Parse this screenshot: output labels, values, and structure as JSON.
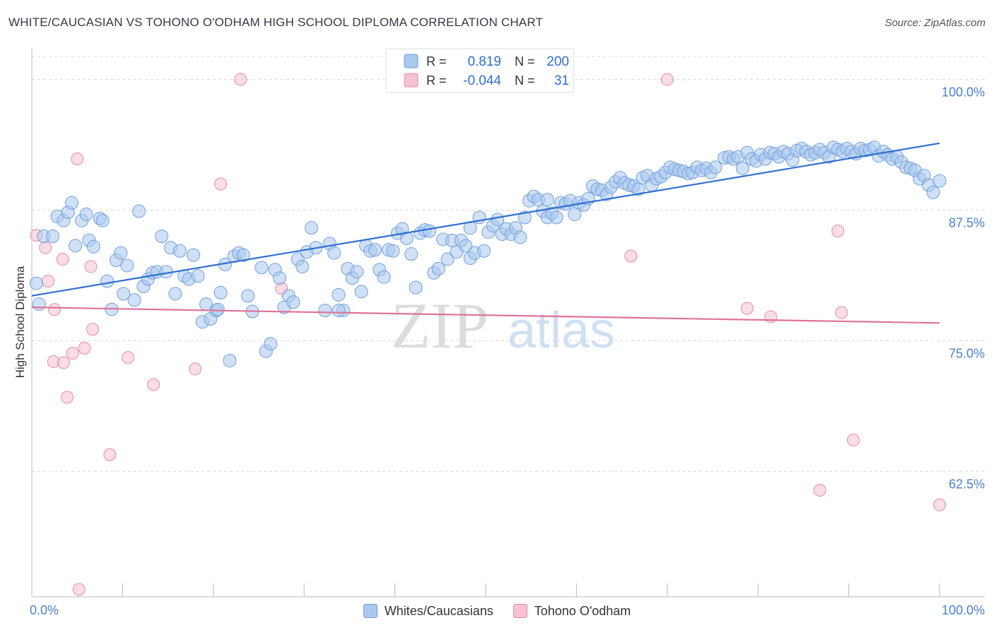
{
  "header": {
    "title": "WHITE/CAUCASIAN VS TOHONO O'ODHAM HIGH SCHOOL DIPLOMA CORRELATION CHART",
    "source": "Source: ZipAtlas.com"
  },
  "watermark": {
    "zip": "ZIP",
    "atlas": "atlas"
  },
  "colors": {
    "blue_fill": "#a9c8f0",
    "blue_stroke": "#6f9fdc",
    "blue_line": "#2f6fd0",
    "pink_fill": "#f6c1d2",
    "pink_stroke": "#e68aa8",
    "pink_line": "#e0729a",
    "tick_label": "#4a7fd0",
    "grid": "#d8d8d8"
  },
  "legend_top": [
    {
      "r_label": "R =",
      "r_value": "0.819",
      "n_label": "N =",
      "n_value": "200"
    },
    {
      "r_label": "R =",
      "r_value": "-0.044",
      "n_label": "N =",
      "n_value": "31"
    }
  ],
  "legend_bottom": [
    {
      "label": "Whites/Caucasians"
    },
    {
      "label": "Tohono O'odham"
    }
  ],
  "chart_data": {
    "type": "scatter",
    "title": "WHITE/CAUCASIAN VS TOHONO O'ODHAM HIGH SCHOOL DIPLOMA CORRELATION CHART",
    "xlabel": "",
    "ylabel": "High School Diploma",
    "xlim": [
      0,
      100
    ],
    "ylim": [
      50.5,
      102.2
    ],
    "x_tick_labels": [
      "0.0%",
      "100.0%"
    ],
    "y_ticks": [
      62.5,
      75.0,
      87.5,
      100.0
    ],
    "y_tick_labels": [
      "62.5%",
      "75.0%",
      "87.5%",
      "100.0%"
    ],
    "grid": true,
    "legend_position": "top-center",
    "series": [
      {
        "name": "Whites/Caucasians",
        "r": 0.819,
        "n": 200,
        "trend": {
          "x": [
            0,
            100
          ],
          "y": [
            79.3,
            93.9
          ]
        },
        "points": [
          [
            0.5,
            80.5
          ],
          [
            0.8,
            78.5
          ],
          [
            1.3,
            85
          ],
          [
            2.3,
            85
          ],
          [
            2.8,
            86.9
          ],
          [
            3.5,
            86.5
          ],
          [
            4,
            87.3
          ],
          [
            4.4,
            88.2
          ],
          [
            4.8,
            84.1
          ],
          [
            5.5,
            86.5
          ],
          [
            6,
            87.1
          ],
          [
            6.3,
            84.6
          ],
          [
            6.8,
            84
          ],
          [
            7.5,
            86.7
          ],
          [
            7.8,
            86.5
          ],
          [
            8.3,
            80.7
          ],
          [
            8.8,
            78
          ],
          [
            9.3,
            82.7
          ],
          [
            9.8,
            83.4
          ],
          [
            10.1,
            79.5
          ],
          [
            10.5,
            82.2
          ],
          [
            11.3,
            78.9
          ],
          [
            11.8,
            87.4
          ],
          [
            12.3,
            80.2
          ],
          [
            12.8,
            80.9
          ],
          [
            13.3,
            81.5
          ],
          [
            13.8,
            81.6
          ],
          [
            14.3,
            85
          ],
          [
            14.8,
            81.6
          ],
          [
            15.3,
            83.9
          ],
          [
            15.8,
            79.5
          ],
          [
            16.3,
            83.6
          ],
          [
            16.8,
            81.2
          ],
          [
            17.3,
            80.9
          ],
          [
            17.8,
            83.2
          ],
          [
            18.3,
            81.2
          ],
          [
            18.8,
            76.8
          ],
          [
            19.2,
            78.5
          ],
          [
            19.7,
            77.1
          ],
          [
            20.3,
            77.9
          ],
          [
            20.8,
            79.6
          ],
          [
            21.3,
            82.3
          ],
          [
            21.8,
            73.1
          ],
          [
            22.3,
            83.1
          ],
          [
            22.8,
            83.4
          ],
          [
            23.3,
            83.2
          ],
          [
            23.8,
            79.3
          ],
          [
            24.3,
            77.8
          ],
          [
            25.3,
            82
          ],
          [
            25.8,
            74
          ],
          [
            26.3,
            74.7
          ],
          [
            26.8,
            81.8
          ],
          [
            27.3,
            81
          ],
          [
            27.8,
            78.2
          ],
          [
            28.3,
            79.3
          ],
          [
            28.8,
            78.7
          ],
          [
            29.3,
            82.8
          ],
          [
            29.8,
            82.1
          ],
          [
            30.3,
            83.5
          ],
          [
            30.8,
            85.8
          ],
          [
            31.3,
            83.9
          ],
          [
            32.3,
            77.9
          ],
          [
            32.8,
            84.3
          ],
          [
            33.3,
            83.4
          ],
          [
            33.8,
            79.4
          ],
          [
            34.3,
            77.9
          ],
          [
            34.8,
            81.9
          ],
          [
            35.3,
            81
          ],
          [
            35.8,
            81.6
          ],
          [
            36.3,
            79.7
          ],
          [
            36.8,
            84.1
          ],
          [
            37.3,
            83.6
          ],
          [
            37.8,
            83.7
          ],
          [
            38.3,
            81.8
          ],
          [
            38.8,
            81.1
          ],
          [
            39.3,
            83.7
          ],
          [
            39.8,
            83.6
          ],
          [
            40.3,
            85.3
          ],
          [
            40.8,
            85.7
          ],
          [
            41.3,
            84.8
          ],
          [
            41.8,
            83.3
          ],
          [
            42.3,
            80.1
          ],
          [
            42.8,
            85.3
          ],
          [
            43.3,
            85.6
          ],
          [
            43.8,
            85.5
          ],
          [
            44.3,
            81.5
          ],
          [
            44.8,
            81.9
          ],
          [
            45.3,
            84.7
          ],
          [
            45.8,
            82.8
          ],
          [
            46.3,
            84.6
          ],
          [
            46.8,
            83.5
          ],
          [
            47.3,
            84.6
          ],
          [
            47.8,
            84.1
          ],
          [
            48.3,
            82.9
          ],
          [
            48.8,
            83.4
          ],
          [
            49.3,
            86.8
          ],
          [
            49.8,
            83.6
          ],
          [
            50.3,
            85.4
          ],
          [
            50.8,
            86
          ],
          [
            51.3,
            86.6
          ],
          [
            51.8,
            85.2
          ],
          [
            52.3,
            85.7
          ],
          [
            52.8,
            85.2
          ],
          [
            53.3,
            85.8
          ],
          [
            53.8,
            84.9
          ],
          [
            54.3,
            86.8
          ],
          [
            54.8,
            88.4
          ],
          [
            55.3,
            88.8
          ],
          [
            55.8,
            88.5
          ],
          [
            56.3,
            87.4
          ],
          [
            56.8,
            86.8
          ],
          [
            57.3,
            87.2
          ],
          [
            57.8,
            86.8
          ],
          [
            58.3,
            88.2
          ],
          [
            58.8,
            88.1
          ],
          [
            59.3,
            88.4
          ],
          [
            59.8,
            87.1
          ],
          [
            60.3,
            88.2
          ],
          [
            60.8,
            88
          ],
          [
            61.3,
            88.6
          ],
          [
            61.8,
            89.8
          ],
          [
            62.3,
            89.5
          ],
          [
            62.8,
            89.4
          ],
          [
            63.3,
            89
          ],
          [
            63.8,
            89.7
          ],
          [
            64.3,
            90.2
          ],
          [
            64.8,
            90.6
          ],
          [
            65.3,
            90.1
          ],
          [
            65.8,
            89.9
          ],
          [
            66.3,
            89.8
          ],
          [
            66.8,
            89.5
          ],
          [
            67.3,
            90.6
          ],
          [
            67.8,
            90.8
          ],
          [
            68.3,
            89.9
          ],
          [
            68.8,
            90.5
          ],
          [
            69.3,
            90.7
          ],
          [
            69.8,
            91.1
          ],
          [
            70.3,
            91.6
          ],
          [
            70.8,
            91.4
          ],
          [
            71.3,
            91.3
          ],
          [
            71.8,
            91.2
          ],
          [
            72.3,
            91
          ],
          [
            72.8,
            91.1
          ],
          [
            73.3,
            91.6
          ],
          [
            73.8,
            91.3
          ],
          [
            74.3,
            91.5
          ],
          [
            74.8,
            91.1
          ],
          [
            75.3,
            91.6
          ],
          [
            76.3,
            92.5
          ],
          [
            76.8,
            92.6
          ],
          [
            77.3,
            92.4
          ],
          [
            77.8,
            92.6
          ],
          [
            78.3,
            91.5
          ],
          [
            78.8,
            93
          ],
          [
            79.3,
            92.4
          ],
          [
            79.8,
            92.2
          ],
          [
            80.3,
            92.8
          ],
          [
            80.8,
            92.4
          ],
          [
            81.3,
            93
          ],
          [
            81.8,
            92.9
          ],
          [
            82.3,
            92.6
          ],
          [
            82.8,
            93.1
          ],
          [
            83.3,
            92.9
          ],
          [
            83.8,
            92.3
          ],
          [
            84.3,
            93.2
          ],
          [
            84.8,
            93.4
          ],
          [
            85.3,
            93.1
          ],
          [
            85.8,
            92.8
          ],
          [
            86.3,
            93
          ],
          [
            86.8,
            93.3
          ],
          [
            87.3,
            93
          ],
          [
            87.8,
            92.6
          ],
          [
            88.3,
            93.5
          ],
          [
            88.8,
            93.3
          ],
          [
            89.3,
            93.1
          ],
          [
            89.8,
            93.4
          ],
          [
            90.3,
            93.1
          ],
          [
            90.8,
            92.9
          ],
          [
            91.3,
            93.4
          ],
          [
            91.8,
            93.2
          ],
          [
            92.3,
            93.3
          ],
          [
            92.8,
            93.5
          ],
          [
            93.3,
            92.7
          ],
          [
            93.8,
            93.1
          ],
          [
            94.3,
            92.8
          ],
          [
            94.8,
            92.4
          ],
          [
            95.3,
            92.6
          ],
          [
            95.8,
            92.1
          ],
          [
            96.3,
            91.6
          ],
          [
            96.8,
            91.5
          ],
          [
            97.3,
            91.3
          ],
          [
            97.8,
            90.5
          ],
          [
            98.3,
            90.8
          ],
          [
            98.8,
            89.9
          ],
          [
            99.3,
            89.2
          ],
          [
            100,
            90.3
          ],
          [
            20.5,
            78
          ],
          [
            33.8,
            77.9
          ],
          [
            56.8,
            88.5
          ],
          [
            48.3,
            85.8
          ]
        ]
      },
      {
        "name": "Tohono O'odham",
        "r": -0.044,
        "n": 31,
        "trend": {
          "x": [
            0,
            100
          ],
          "y": [
            78.2,
            76.7
          ]
        },
        "points": [
          [
            0.5,
            85.1
          ],
          [
            1.5,
            83.9
          ],
          [
            1.8,
            80.7
          ],
          [
            2.5,
            78
          ],
          [
            3.4,
            82.8
          ],
          [
            2.4,
            73
          ],
          [
            3.5,
            72.9
          ],
          [
            3.9,
            69.6
          ],
          [
            4.5,
            73.8
          ],
          [
            5,
            92.4
          ],
          [
            5.2,
            51.2
          ],
          [
            5.8,
            74.3
          ],
          [
            6.5,
            82.1
          ],
          [
            6.7,
            76.1
          ],
          [
            8.6,
            64.1
          ],
          [
            10.6,
            73.4
          ],
          [
            13.4,
            70.8
          ],
          [
            18,
            72.3
          ],
          [
            20.8,
            90
          ],
          [
            23,
            100
          ],
          [
            27.5,
            80
          ],
          [
            41.5,
            100.8
          ],
          [
            70,
            100
          ],
          [
            66,
            83.1
          ],
          [
            78.8,
            78.1
          ],
          [
            88.8,
            85.5
          ],
          [
            81.4,
            77.3
          ],
          [
            89.2,
            77.7
          ],
          [
            90.5,
            65.5
          ],
          [
            86.8,
            60.7
          ],
          [
            100,
            59.3
          ]
        ]
      }
    ]
  }
}
